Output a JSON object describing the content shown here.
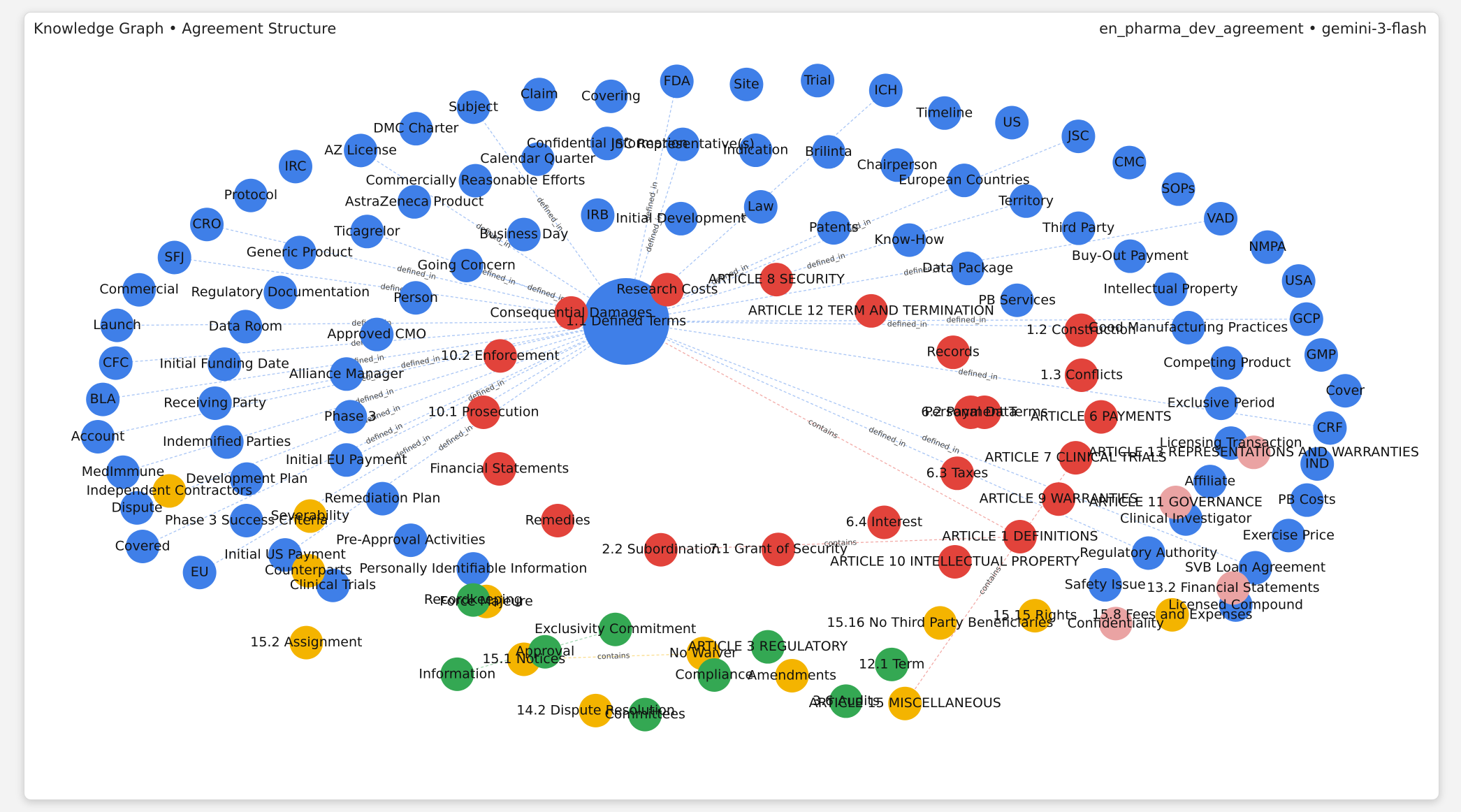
{
  "header": {
    "title": "Knowledge Graph • Agreement Structure",
    "subtitle": "en_pharma_dev_agreement • gemini-3-flash"
  },
  "nodes": [
    {
      "label": "1.1 Defined Terms",
      "color": "#3f7fe8"
    },
    {
      "label": "EU",
      "color": "#3f7fe8"
    },
    {
      "label": "Covered",
      "color": "#3f7fe8"
    },
    {
      "label": "Dispute",
      "color": "#3f7fe8"
    },
    {
      "label": "MedImmune",
      "color": "#3f7fe8"
    },
    {
      "label": "Account",
      "color": "#3f7fe8"
    },
    {
      "label": "BLA",
      "color": "#3f7fe8"
    },
    {
      "label": "CFC",
      "color": "#3f7fe8"
    },
    {
      "label": "Launch",
      "color": "#3f7fe8"
    },
    {
      "label": "Commercial",
      "color": "#3f7fe8"
    },
    {
      "label": "SFJ",
      "color": "#3f7fe8"
    },
    {
      "label": "CRO",
      "color": "#3f7fe8"
    },
    {
      "label": "Protocol",
      "color": "#3f7fe8"
    },
    {
      "label": "IRC",
      "color": "#3f7fe8"
    },
    {
      "label": "AZ License",
      "color": "#3f7fe8"
    },
    {
      "label": "DMC Charter",
      "color": "#3f7fe8"
    },
    {
      "label": "Subject",
      "color": "#3f7fe8"
    },
    {
      "label": "Claim",
      "color": "#3f7fe8"
    },
    {
      "label": "Covering",
      "color": "#3f7fe8"
    },
    {
      "label": "FDA",
      "color": "#3f7fe8"
    },
    {
      "label": "Site",
      "color": "#3f7fe8"
    },
    {
      "label": "Trial",
      "color": "#3f7fe8"
    },
    {
      "label": "ICH",
      "color": "#3f7fe8"
    },
    {
      "label": "Timeline",
      "color": "#3f7fe8"
    },
    {
      "label": "US",
      "color": "#3f7fe8"
    },
    {
      "label": "JSC",
      "color": "#3f7fe8"
    },
    {
      "label": "CMC",
      "color": "#3f7fe8"
    },
    {
      "label": "SOPs",
      "color": "#3f7fe8"
    },
    {
      "label": "VAD",
      "color": "#3f7fe8"
    },
    {
      "label": "NMPA",
      "color": "#3f7fe8"
    },
    {
      "label": "USA",
      "color": "#3f7fe8"
    },
    {
      "label": "GCP",
      "color": "#3f7fe8"
    },
    {
      "label": "GMP",
      "color": "#3f7fe8"
    },
    {
      "label": "Cover",
      "color": "#3f7fe8"
    },
    {
      "label": "CRF",
      "color": "#3f7fe8"
    },
    {
      "label": "IND",
      "color": "#3f7fe8"
    },
    {
      "label": "PB Costs",
      "color": "#3f7fe8"
    },
    {
      "label": "Exercise Price",
      "color": "#3f7fe8"
    },
    {
      "label": "SVB Loan Agreement",
      "color": "#3f7fe8"
    },
    {
      "label": "Licensed Compound",
      "color": "#3f7fe8"
    },
    {
      "label": "Clinical Trials",
      "color": "#3f7fe8"
    },
    {
      "label": "Initial US Payment",
      "color": "#3f7fe8"
    },
    {
      "label": "Phase 3 Success Criteria",
      "color": "#3f7fe8"
    },
    {
      "label": "Development Plan",
      "color": "#3f7fe8"
    },
    {
      "label": "Indemnified Parties",
      "color": "#3f7fe8"
    },
    {
      "label": "Receiving Party",
      "color": "#3f7fe8"
    },
    {
      "label": "Initial Funding Date",
      "color": "#3f7fe8"
    },
    {
      "label": "Data Room",
      "color": "#3f7fe8"
    },
    {
      "label": "Regulatory Documentation",
      "color": "#3f7fe8"
    },
    {
      "label": "Generic Product",
      "color": "#3f7fe8"
    },
    {
      "label": "Ticagrelor",
      "color": "#3f7fe8"
    },
    {
      "label": "AstraZeneca Product",
      "color": "#3f7fe8"
    },
    {
      "label": "Commercially Reasonable Efforts",
      "color": "#3f7fe8"
    },
    {
      "label": "Calendar Quarter",
      "color": "#3f7fe8"
    },
    {
      "label": "Confidential Information",
      "color": "#3f7fe8"
    },
    {
      "label": "JSC Representative(s)",
      "color": "#3f7fe8"
    },
    {
      "label": "Indication",
      "color": "#3f7fe8"
    },
    {
      "label": "Brilinta",
      "color": "#3f7fe8"
    },
    {
      "label": "Chairperson",
      "color": "#3f7fe8"
    },
    {
      "label": "European Countries",
      "color": "#3f7fe8"
    },
    {
      "label": "Territory",
      "color": "#3f7fe8"
    },
    {
      "label": "Third Party",
      "color": "#3f7fe8"
    },
    {
      "label": "Buy-Out Payment",
      "color": "#3f7fe8"
    },
    {
      "label": "Intellectual Property",
      "color": "#3f7fe8"
    },
    {
      "label": "Good Manufacturing Practices",
      "color": "#3f7fe8"
    },
    {
      "label": "Competing Product",
      "color": "#3f7fe8"
    },
    {
      "label": "Exclusive Period",
      "color": "#3f7fe8"
    },
    {
      "label": "Licensing Transaction",
      "color": "#3f7fe8"
    },
    {
      "label": "Affiliate",
      "color": "#3f7fe8"
    },
    {
      "label": "Clinical Investigator",
      "color": "#3f7fe8"
    },
    {
      "label": "Regulatory Authority",
      "color": "#3f7fe8"
    },
    {
      "label": "Safety Issue",
      "color": "#3f7fe8"
    },
    {
      "label": "Personally Identifiable Information",
      "color": "#3f7fe8"
    },
    {
      "label": "Pre-Approval Activities",
      "color": "#3f7fe8"
    },
    {
      "label": "Remediation Plan",
      "color": "#3f7fe8"
    },
    {
      "label": "Initial EU Payment",
      "color": "#3f7fe8"
    },
    {
      "label": "Phase 3",
      "color": "#3f7fe8"
    },
    {
      "label": "Alliance Manager",
      "color": "#3f7fe8"
    },
    {
      "label": "Approved CMO",
      "color": "#3f7fe8"
    },
    {
      "label": "Person",
      "color": "#3f7fe8"
    },
    {
      "label": "Going Concern",
      "color": "#3f7fe8"
    },
    {
      "label": "Business Day",
      "color": "#3f7fe8"
    },
    {
      "label": "IRB",
      "color": "#3f7fe8"
    },
    {
      "label": "Initial Development",
      "color": "#3f7fe8"
    },
    {
      "label": "Law",
      "color": "#3f7fe8"
    },
    {
      "label": "Patents",
      "color": "#3f7fe8"
    },
    {
      "label": "Know-How",
      "color": "#3f7fe8"
    },
    {
      "label": "Data Package",
      "color": "#3f7fe8"
    },
    {
      "label": "PB Services",
      "color": "#3f7fe8"
    },
    {
      "label": "1.2 Construction",
      "color": "#e2433b"
    },
    {
      "label": "1.3 Conflicts",
      "color": "#e2433b"
    },
    {
      "label": "ARTICLE 6 PAYMENTS",
      "color": "#e2433b"
    },
    {
      "label": "ARTICLE 7 CLINICAL TRIALS",
      "color": "#e2433b"
    },
    {
      "label": "ARTICLE 9 WARRANTIES",
      "color": "#e2433b"
    },
    {
      "label": "ARTICLE 1 DEFINITIONS",
      "color": "#e2433b"
    },
    {
      "label": "ARTICLE 10 INTELLECTUAL PROPERTY",
      "color": "#e2433b"
    },
    {
      "label": "6.2 Payment Terms",
      "color": "#e2433b"
    },
    {
      "label": "6.3 Taxes",
      "color": "#e2433b"
    },
    {
      "label": "6.4 Interest",
      "color": "#e2433b"
    },
    {
      "label": "7.1 Grant of Security",
      "color": "#e2433b"
    },
    {
      "label": "2.2 Subordination",
      "color": "#e2433b"
    },
    {
      "label": "Remedies",
      "color": "#e2433b"
    },
    {
      "label": "Financial Statements",
      "color": "#e2433b"
    },
    {
      "label": "10.1 Prosecution",
      "color": "#e2433b"
    },
    {
      "label": "10.2 Enforcement",
      "color": "#e2433b"
    },
    {
      "label": "Consequential Damages",
      "color": "#e2433b"
    },
    {
      "label": "Research Costs",
      "color": "#e2433b"
    },
    {
      "label": "ARTICLE 8 SECURITY",
      "color": "#e2433b"
    },
    {
      "label": "ARTICLE 12 TERM AND TERMINATION",
      "color": "#e2433b"
    },
    {
      "label": "Records",
      "color": "#e2433b"
    },
    {
      "label": "Personal Data",
      "color": "#e2433b"
    },
    {
      "label": "15.8 Fees and Expenses",
      "color": "#f4b400"
    },
    {
      "label": "15.15 Rights",
      "color": "#f4b400"
    },
    {
      "label": "15.16 No Third Party Beneficiaries",
      "color": "#f4b400"
    },
    {
      "label": "ARTICLE 15 MISCELLANEOUS",
      "color": "#f4b400"
    },
    {
      "label": "Amendments",
      "color": "#f4b400"
    },
    {
      "label": "No Waiver",
      "color": "#f4b400"
    },
    {
      "label": "14.2 Dispute Resolution",
      "color": "#f4b400"
    },
    {
      "label": "15.1 Notices",
      "color": "#f4b400"
    },
    {
      "label": "Force Majeure",
      "color": "#f4b400"
    },
    {
      "label": "15.2 Assignment",
      "color": "#f4b400"
    },
    {
      "label": "Counterparts",
      "color": "#f4b400"
    },
    {
      "label": "Severability",
      "color": "#f4b400"
    },
    {
      "label": "Independent Contractors",
      "color": "#f4b400"
    },
    {
      "label": "12.1 Term",
      "color": "#34a853"
    },
    {
      "label": "3.6 Audits",
      "color": "#34a853"
    },
    {
      "label": "ARTICLE 3 REGULATORY",
      "color": "#34a853"
    },
    {
      "label": "Compliance",
      "color": "#34a853"
    },
    {
      "label": "Committees",
      "color": "#34a853"
    },
    {
      "label": "Exclusivity Commitment",
      "color": "#34a853"
    },
    {
      "label": "Approval",
      "color": "#34a853"
    },
    {
      "label": "Information",
      "color": "#34a853"
    },
    {
      "label": "Recordkeeping",
      "color": "#34a853"
    },
    {
      "label": "ARTICLE 13 REPRESENTATIONS AND WARRANTIES",
      "color": "#eaa3a3"
    },
    {
      "label": "ARTICLE 11 GOVERNANCE",
      "color": "#eaa3a3"
    },
    {
      "label": "13.2 Financial Statements",
      "color": "#eaa3a3"
    },
    {
      "label": "Confidentiality",
      "color": "#eaa3a3"
    }
  ],
  "edges": [
    {
      "source": 1,
      "target": 0,
      "label": "defined_in"
    },
    {
      "source": 2,
      "target": 0,
      "label": "defined_in"
    },
    {
      "source": 3,
      "target": 0,
      "label": "defined_in"
    },
    {
      "source": 4,
      "target": 0,
      "label": "defined_in"
    },
    {
      "source": 5,
      "target": 0,
      "label": "defined_in"
    },
    {
      "source": 6,
      "target": 0,
      "label": "defined_in"
    },
    {
      "source": 7,
      "target": 0,
      "label": "defined_in"
    },
    {
      "source": 8,
      "target": 0,
      "label": "defined_in"
    },
    {
      "source": 10,
      "target": 0,
      "label": "defined_in"
    },
    {
      "source": 11,
      "target": 0,
      "label": "defined_in"
    },
    {
      "source": 14,
      "target": 0,
      "label": "defined_in"
    },
    {
      "source": 16,
      "target": 0,
      "label": "defined_in"
    },
    {
      "source": 19,
      "target": 0,
      "label": "defined_in"
    },
    {
      "source": 22,
      "target": 0,
      "label": "defined_in"
    },
    {
      "source": 25,
      "target": 0,
      "label": "defined_in"
    },
    {
      "source": 28,
      "target": 0,
      "label": "defined_in"
    },
    {
      "source": 31,
      "target": 0,
      "label": "defined_in"
    },
    {
      "source": 34,
      "target": 0,
      "label": "defined_in"
    },
    {
      "source": 38,
      "target": 0,
      "label": "defined_in"
    },
    {
      "source": 41,
      "target": 0,
      "label": "defined_in"
    },
    {
      "source": 45,
      "target": 0,
      "label": "defined_in"
    },
    {
      "source": 50,
      "target": 0,
      "label": "defined_in"
    },
    {
      "source": 55,
      "target": 0,
      "label": "defined_in"
    },
    {
      "source": 60,
      "target": 0,
      "label": "defined_in"
    },
    {
      "source": 64,
      "target": 0,
      "label": "defined_in"
    },
    {
      "source": 70,
      "target": 0,
      "label": "defined_in"
    },
    {
      "source": 75,
      "target": 0,
      "label": "defined_in"
    },
    {
      "source": 80,
      "target": 0,
      "label": "defined_in"
    },
    {
      "source": 85,
      "target": 0,
      "label": "defined_in"
    },
    {
      "source": 94,
      "target": 0,
      "label": "contains"
    },
    {
      "source": 94,
      "target": 100,
      "label": "contains"
    },
    {
      "source": 92,
      "target": 114,
      "label": "contains"
    },
    {
      "source": 116,
      "target": 118,
      "label": "contains"
    },
    {
      "source": 129,
      "target": 131,
      "label": "contains"
    }
  ]
}
